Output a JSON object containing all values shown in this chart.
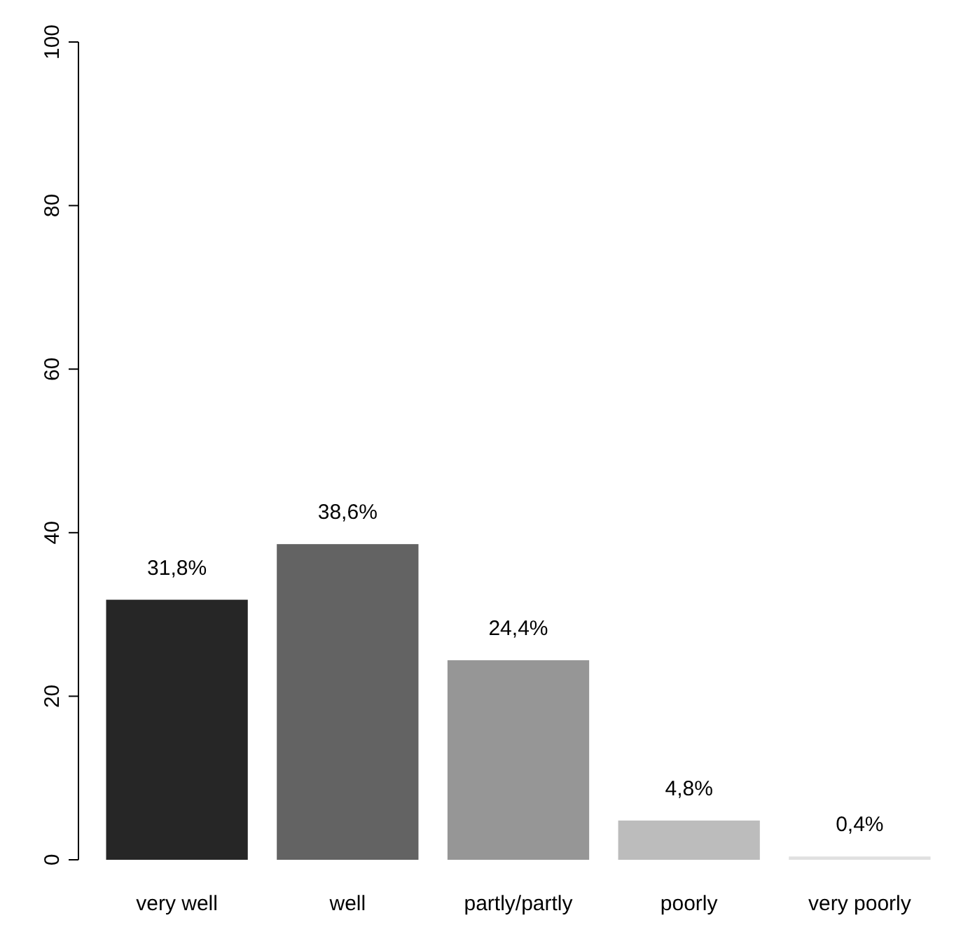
{
  "chart_data": {
    "type": "bar",
    "categories": [
      "very well",
      "well",
      "partly/partly",
      "poorly",
      "very poorly"
    ],
    "values": [
      31.8,
      38.6,
      24.4,
      4.8,
      0.4
    ],
    "colors": [
      "#262626",
      "#636363",
      "#969696",
      "#bcbcbc",
      "#e0e0e0"
    ],
    "value_labels": [
      "31,8%",
      "38,6%",
      "24,4%",
      "4,8%",
      "0,4%"
    ],
    "ylim": [
      0,
      100
    ],
    "yticks": [
      0,
      20,
      40,
      60,
      80,
      100
    ]
  }
}
